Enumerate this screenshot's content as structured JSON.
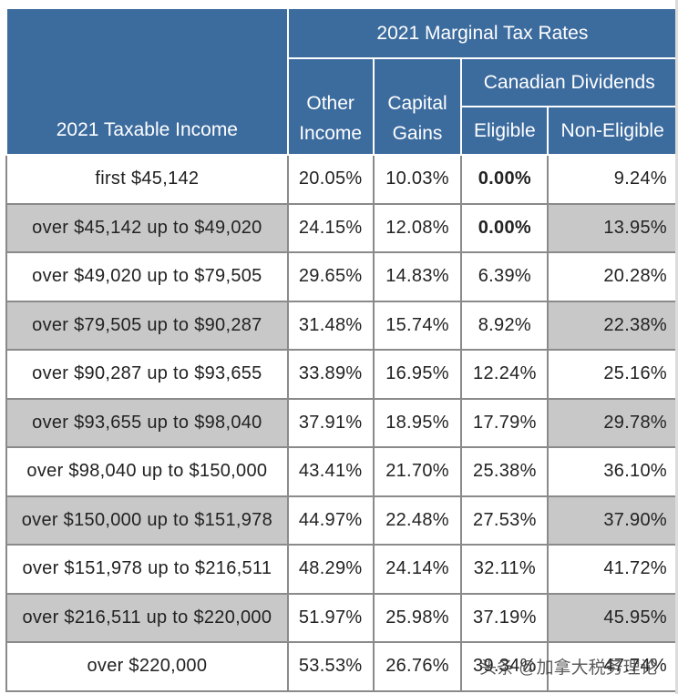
{
  "table": {
    "header": {
      "group_title": "2021 Marginal Tax Rates",
      "col_income": "2021 Taxable Income",
      "col_other": [
        "Other",
        "Income"
      ],
      "col_capital": [
        "Capital",
        "Gains"
      ],
      "dividends_title": "Canadian Dividends",
      "col_eligible": "Eligible",
      "col_non_eligible": "Non-Eligible"
    },
    "rows": [
      {
        "range": "first $45,142",
        "other": "20.05%",
        "capital": "10.03%",
        "eligible": "0.00%",
        "non_eligible": "9.24%"
      },
      {
        "range": "over $45,142 up to $49,020",
        "other": "24.15%",
        "capital": "12.08%",
        "eligible": "0.00%",
        "non_eligible": "13.95%"
      },
      {
        "range": "over $49,020 up to $79,505",
        "other": "29.65%",
        "capital": "14.83%",
        "eligible": "6.39%",
        "non_eligible": "20.28%"
      },
      {
        "range": "over $79,505 up to $90,287",
        "other": "31.48%",
        "capital": "15.74%",
        "eligible": "8.92%",
        "non_eligible": "22.38%"
      },
      {
        "range": "over $90,287 up to $93,655",
        "other": "33.89%",
        "capital": "16.95%",
        "eligible": "12.24%",
        "non_eligible": "25.16%"
      },
      {
        "range": "over $93,655 up to $98,040",
        "other": "37.91%",
        "capital": "18.95%",
        "eligible": "17.79%",
        "non_eligible": "29.78%"
      },
      {
        "range": "over $98,040 up to $150,000",
        "other": "43.41%",
        "capital": "21.70%",
        "eligible": "25.38%",
        "non_eligible": "36.10%"
      },
      {
        "range": "over $150,000 up to $151,978",
        "other": "44.97%",
        "capital": "22.48%",
        "eligible": "27.53%",
        "non_eligible": "37.90%"
      },
      {
        "range": "over $151,978 up to $216,511",
        "other": "48.29%",
        "capital": "24.14%",
        "eligible": "32.11%",
        "non_eligible": "41.72%"
      },
      {
        "range": "over $216,511 up to $220,000",
        "other": "51.97%",
        "capital": "25.98%",
        "eligible": "37.19%",
        "non_eligible": "45.95%"
      },
      {
        "range": "over $220,000",
        "other": "53.53%",
        "capital": "26.76%",
        "eligible": "39.34%",
        "non_eligible": "47.74%"
      }
    ]
  },
  "watermark": {
    "text": "头条 @加拿大税务理论"
  }
}
